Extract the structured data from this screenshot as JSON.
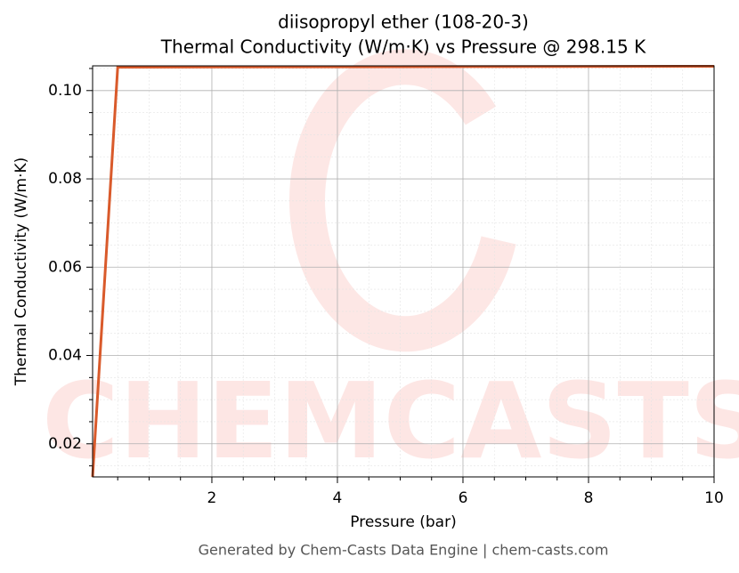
{
  "chart_data": {
    "type": "line",
    "title": "diisopropyl ether (108-20-3)",
    "subtitle": "Thermal Conductivity (W/m·K) vs Pressure @ 298.15 K",
    "x_label": "Pressure (bar)",
    "y_label": "Thermal Conductivity (W/m·K)",
    "footer": "Generated by Chem-Casts Data Engine | chem-casts.com",
    "watermark": "CHEMCASTS",
    "x": [
      0.1,
      0.5,
      10
    ],
    "series": [
      {
        "name": "Thermal Conductivity",
        "color": "#d95a2b",
        "values": [
          0.0125,
          0.1053,
          0.1055
        ]
      }
    ],
    "xlim": [
      0.1,
      10
    ],
    "ylim": [
      0.0125,
      0.1056
    ],
    "xticks": [
      2,
      4,
      6,
      8,
      10
    ],
    "yticks": [
      {
        "value": 0.02,
        "label": "0.02"
      },
      {
        "value": 0.04,
        "label": "0.04"
      },
      {
        "value": 0.06,
        "label": "0.06"
      },
      {
        "value": 0.08,
        "label": "0.08"
      },
      {
        "value": 0.1,
        "label": "0.10"
      }
    ],
    "x_minor_ticks": [
      0.5,
      1,
      1.5,
      2.5,
      3,
      3.5,
      4.5,
      5,
      5.5,
      6.5,
      7,
      7.5,
      8.5,
      9,
      9.5
    ],
    "y_minor_ticks": [
      0.015,
      0.025,
      0.03,
      0.035,
      0.045,
      0.05,
      0.055,
      0.065,
      0.07,
      0.075,
      0.085,
      0.09,
      0.095,
      0.105
    ],
    "grid": true
  }
}
